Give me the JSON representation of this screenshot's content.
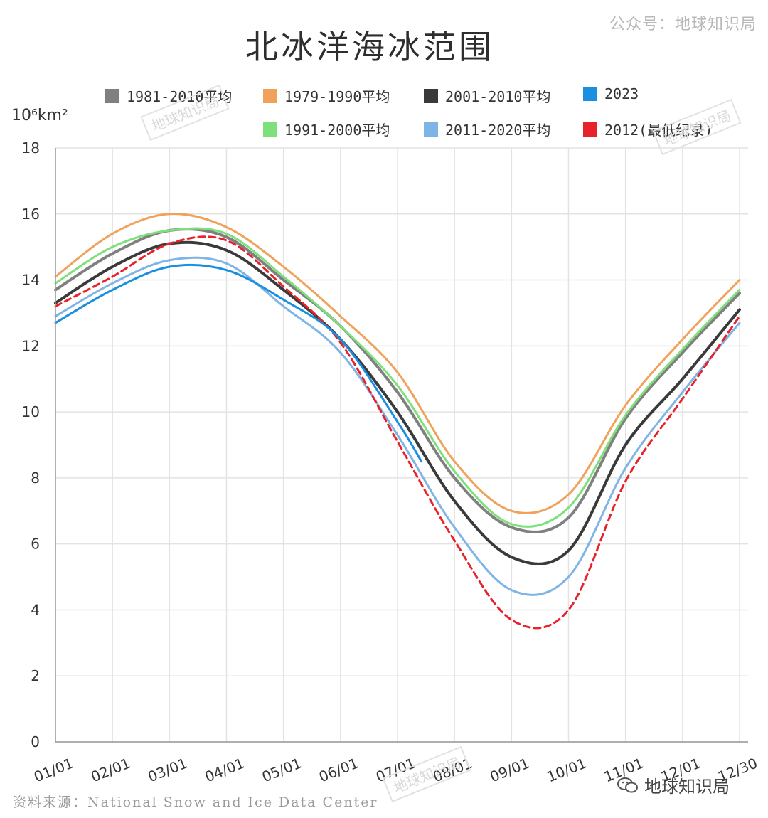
{
  "header": {
    "title": "北冰洋海冰范围",
    "watermark": "公众号：地球知识局"
  },
  "footer": {
    "source": "资料来源：National Snow and Ice Data Center",
    "brand": "地球知识局",
    "chart_watermark": "地球知识局"
  },
  "chart_data": {
    "type": "line",
    "title": "北冰洋海冰范围",
    "ylabel": "10⁶km²",
    "xlabel": "",
    "ylim": [
      0,
      18
    ],
    "yticks": [
      0,
      2,
      4,
      6,
      8,
      10,
      12,
      14,
      16,
      18
    ],
    "grid": true,
    "x": [
      "01/01",
      "02/01",
      "03/01",
      "04/01",
      "05/01",
      "06/01",
      "07/01",
      "08/01",
      "09/01",
      "10/01",
      "11/01",
      "12/01",
      "12/30"
    ],
    "series": [
      {
        "name": "1981-2010平均",
        "color": "#808080",
        "dash": false,
        "values": [
          13.7,
          14.8,
          15.5,
          15.3,
          14.0,
          12.6,
          10.6,
          8.0,
          6.5,
          6.8,
          9.8,
          11.8,
          13.6
        ]
      },
      {
        "name": "1979-1990平均",
        "color": "#f0a25a",
        "dash": false,
        "values": [
          14.1,
          15.4,
          16.0,
          15.6,
          14.4,
          12.9,
          11.2,
          8.5,
          7.0,
          7.5,
          10.2,
          12.2,
          14.0
        ]
      },
      {
        "name": "2001-2010平均",
        "color": "#3a3a3a",
        "dash": false,
        "values": [
          13.3,
          14.4,
          15.1,
          14.9,
          13.7,
          12.2,
          10.0,
          7.3,
          5.6,
          5.8,
          9.0,
          11.0,
          13.1
        ]
      },
      {
        "name": "2023",
        "color": "#1a8fe0",
        "dash": false,
        "values": [
          12.7,
          13.7,
          14.4,
          14.3,
          13.4,
          12.2,
          9.7,
          null,
          null,
          null,
          null,
          null,
          null
        ]
      },
      {
        "name": "1991-2000平均",
        "color": "#7ee07a",
        "dash": false,
        "values": [
          13.9,
          15.0,
          15.5,
          15.4,
          14.1,
          12.6,
          10.8,
          8.2,
          6.6,
          7.1,
          9.9,
          11.9,
          13.7
        ]
      },
      {
        "name": "2011-2020平均",
        "color": "#7fb4e6",
        "dash": false,
        "values": [
          12.9,
          13.9,
          14.6,
          14.5,
          13.2,
          11.8,
          9.3,
          6.5,
          4.6,
          5.0,
          8.3,
          10.6,
          12.7
        ]
      },
      {
        "name": "2012(最低纪录)",
        "color": "#e8222a",
        "dash": true,
        "values": [
          13.2,
          14.1,
          15.1,
          15.2,
          13.8,
          12.1,
          9.1,
          6.1,
          3.7,
          4.0,
          7.9,
          10.4,
          12.9
        ]
      }
    ],
    "series_2023_end": {
      "x": "07/14",
      "value": 8.5
    }
  }
}
